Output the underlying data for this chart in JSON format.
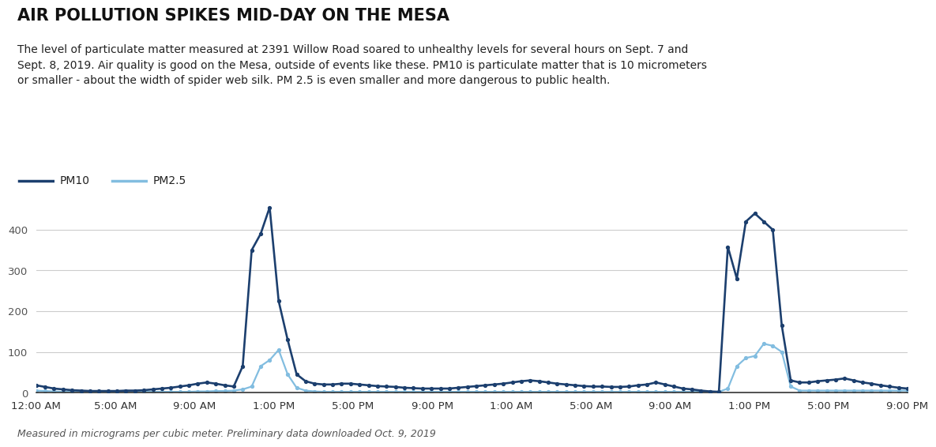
{
  "title": "AIR POLLUTION SPIKES MID-DAY ON THE MESA",
  "subtitle": "The level of particulate matter measured at 2391 Willow Road soared to unhealthy levels for several hours on Sept. 7 and\nSept. 8, 2019. Air quality is good on the Mesa, outside of events like these. PM10 is particulate matter that is 10 micrometers\nor smaller - about the width of spider web silk. PM 2.5 is even smaller and more dangerous to public health.",
  "footnote": "Measured in micrograms per cubic meter. Preliminary data downloaded Oct. 9, 2019",
  "pm10_color": "#1c3f6e",
  "pm25_color": "#82bde0",
  "background_color": "#ffffff",
  "ylim": [
    0,
    470
  ],
  "yticks": [
    0,
    100,
    200,
    300,
    400
  ],
  "x_labels": [
    "12:00 AM",
    "5:00 AM",
    "9:00 AM",
    "1:00 PM",
    "5:00 PM",
    "9:00 PM",
    "1:00 AM",
    "5:00 AM",
    "9:00 AM",
    "1:00 PM",
    "5:00 PM",
    "9:00 PM"
  ],
  "pm10_values": [
    18,
    14,
    10,
    8,
    6,
    5,
    4,
    4,
    4,
    4,
    5,
    5,
    6,
    8,
    10,
    12,
    15,
    18,
    22,
    25,
    22,
    18,
    15,
    65,
    350,
    390,
    455,
    225,
    130,
    45,
    28,
    22,
    20,
    20,
    22,
    22,
    20,
    18,
    16,
    15,
    14,
    12,
    11,
    10,
    10,
    10,
    10,
    12,
    14,
    16,
    18,
    20,
    22,
    25,
    28,
    30,
    28,
    25,
    22,
    20,
    18,
    16,
    15,
    15,
    14,
    14,
    15,
    18,
    20,
    25,
    20,
    15,
    10,
    8,
    5,
    3,
    2,
    358,
    280,
    420,
    440,
    420,
    400,
    165,
    30,
    25,
    25,
    28,
    30,
    32,
    35,
    30,
    25,
    22,
    18,
    15,
    12,
    10
  ],
  "pm25_values": [
    5,
    4,
    3,
    2,
    2,
    2,
    2,
    2,
    2,
    2,
    2,
    2,
    2,
    2,
    2,
    2,
    2,
    2,
    3,
    3,
    4,
    4,
    5,
    8,
    15,
    65,
    80,
    105,
    45,
    12,
    5,
    3,
    2,
    2,
    2,
    2,
    2,
    2,
    2,
    2,
    2,
    2,
    2,
    2,
    2,
    2,
    2,
    2,
    2,
    2,
    2,
    2,
    2,
    2,
    2,
    2,
    2,
    2,
    2,
    2,
    2,
    2,
    2,
    2,
    2,
    2,
    2,
    2,
    2,
    2,
    2,
    2,
    2,
    2,
    2,
    2,
    2,
    10,
    65,
    85,
    90,
    120,
    115,
    100,
    15,
    5,
    5,
    5,
    5,
    5,
    5,
    5,
    5,
    5,
    5,
    5,
    5,
    5
  ]
}
